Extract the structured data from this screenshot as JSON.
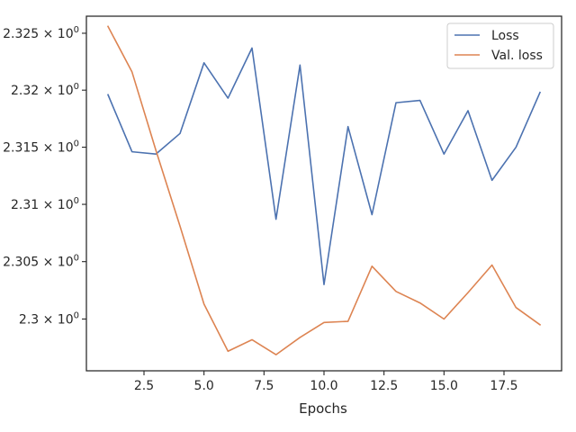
{
  "chart_data": {
    "type": "line",
    "xlabel": "Epochs",
    "ylabel": "",
    "xlim": [
      0.1,
      19.9
    ],
    "ylim": [
      2.2955,
      2.3265
    ],
    "yscale": "log",
    "legend_position": "top-right",
    "x_ticks": [
      {
        "value": 2.5,
        "label": "2.5"
      },
      {
        "value": 5.0,
        "label": "5.0"
      },
      {
        "value": 7.5,
        "label": "7.5"
      },
      {
        "value": 10.0,
        "label": "10.0"
      },
      {
        "value": 12.5,
        "label": "12.5"
      },
      {
        "value": 15.0,
        "label": "15.0"
      },
      {
        "value": 17.5,
        "label": "17.5"
      }
    ],
    "y_ticks": [
      {
        "value": 2.3,
        "mantissa": "2.3"
      },
      {
        "value": 2.305,
        "mantissa": "2.305"
      },
      {
        "value": 2.31,
        "mantissa": "2.31"
      },
      {
        "value": 2.315,
        "mantissa": "2.315"
      },
      {
        "value": 2.32,
        "mantissa": "2.32"
      },
      {
        "value": 2.325,
        "mantissa": "2.325"
      }
    ],
    "y_tick_suffix": "× 10",
    "y_tick_exponent": "0",
    "x": [
      1,
      2,
      3,
      4,
      5,
      6,
      7,
      8,
      9,
      10,
      11,
      12,
      13,
      14,
      15,
      16,
      17,
      18,
      19
    ],
    "series": [
      {
        "name": "Loss",
        "color": "#4c72b0",
        "values": [
          2.3196,
          2.3146,
          2.3144,
          2.3162,
          2.3224,
          2.3193,
          2.3237,
          2.3087,
          2.3222,
          2.303,
          2.3168,
          2.3091,
          2.3189,
          2.3191,
          2.3144,
          2.3182,
          2.3121,
          2.315,
          2.3198
        ]
      },
      {
        "name": "Val. loss",
        "color": "#dd8452",
        "values": [
          2.3256,
          2.3216,
          2.3147,
          2.3081,
          2.3013,
          2.2972,
          2.2982,
          2.2969,
          2.2984,
          2.2997,
          2.2998,
          2.3046,
          2.3024,
          2.3014,
          2.3,
          2.3023,
          2.3047,
          2.301,
          2.2995
        ]
      }
    ]
  }
}
